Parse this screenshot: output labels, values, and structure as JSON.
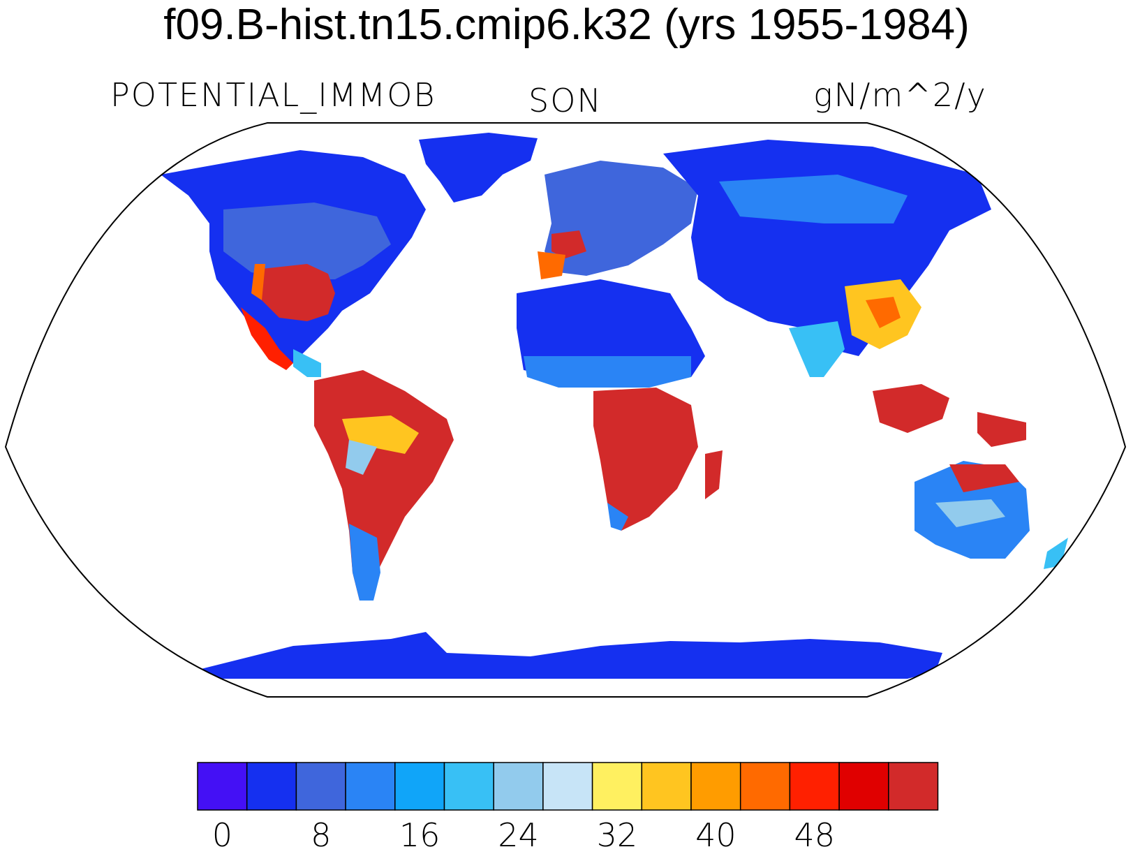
{
  "title": "f09.B-hist.tn15.cmip6.k32 (yrs 1955-1984)",
  "left_label": "POTENTIAL_IMMOB",
  "center_label": "SON",
  "right_label": "gN/m^2/y",
  "colorbar": {
    "colors": [
      "#4410f5",
      "#1530f0",
      "#3f66dc",
      "#2a84f5",
      "#10a5f9",
      "#38c0f5",
      "#92cbed",
      "#c7e4f7",
      "#fff060",
      "#ffc520",
      "#ff9c00",
      "#ff6a00",
      "#ff2000",
      "#e00000",
      "#d22a2a"
    ],
    "ticks": [
      "0",
      "8",
      "16",
      "24",
      "32",
      "40",
      "48"
    ]
  },
  "map": {
    "projection": "Robinson",
    "ocean_color": "#ffffff",
    "low_color": "#1530f0",
    "high_color": "#d22a2a"
  }
}
